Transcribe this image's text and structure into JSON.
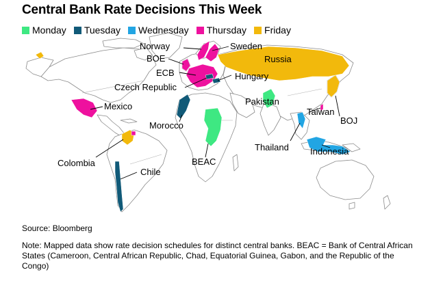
{
  "title": "Central Bank Rate Decisions This Week",
  "legend": [
    {
      "label": "Monday",
      "color": "#3ee882"
    },
    {
      "label": "Tuesday",
      "color": "#115a78"
    },
    {
      "label": "Wednesday",
      "color": "#22a5e3"
    },
    {
      "label": "Thursday",
      "color": "#ee119e"
    },
    {
      "label": "Friday",
      "color": "#f2b90c"
    }
  ],
  "labels": {
    "norway": "Norway",
    "sweden": "Sweden",
    "russia": "Russia",
    "boe": "BOE",
    "ecb": "ECB",
    "hungary": "Hungary",
    "czech": "Czech Republic",
    "pakistan": "Pakistan",
    "mexico": "Mexico",
    "taiwan": "Taiwan",
    "boj": "BOJ",
    "morocco": "Morocco",
    "thailand": "Thailand",
    "indonesia": "Indonesia",
    "colombia": "Colombia",
    "beac": "BEAC",
    "chile": "Chile"
  },
  "source": "Source: Bloomberg",
  "note": "Note: Mapped data show rate decision schedules for distinct central banks. BEAC = Bank of Central African States (Cameroon, Central African Republic, Chad, Equatorial Guinea, Gabon, and the Republic of the Congo)"
}
